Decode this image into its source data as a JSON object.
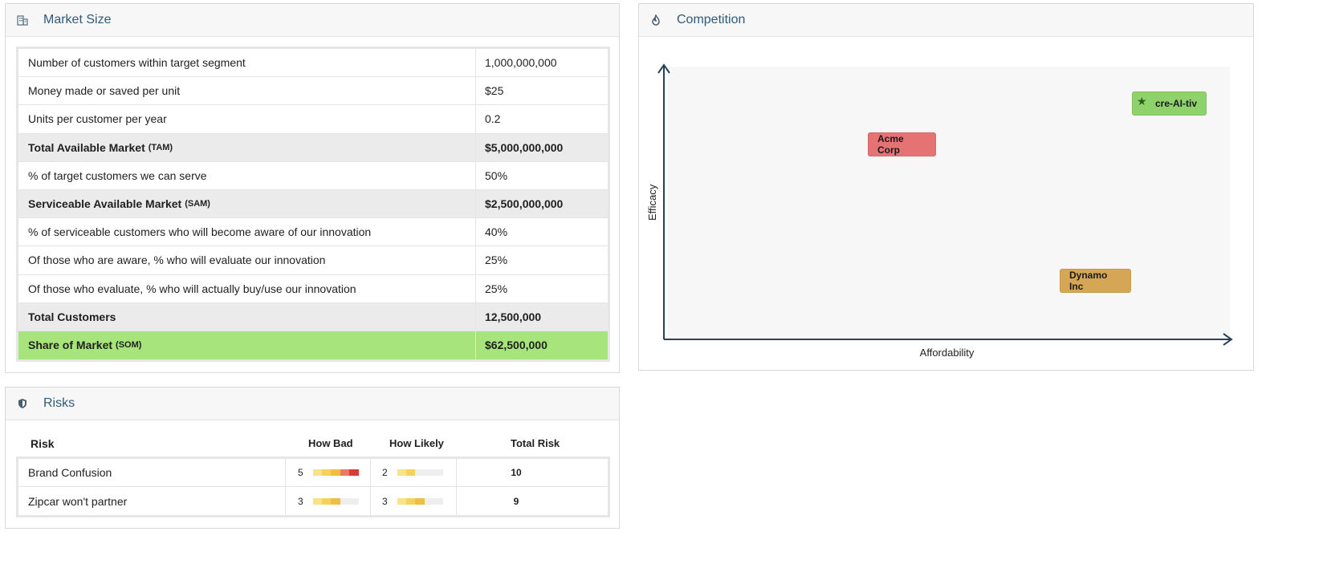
{
  "market": {
    "title": "Market Size",
    "icon": "building-icon",
    "rows": [
      {
        "label": "Number of customers within target segment",
        "abbr": "",
        "value": "1,000,000,000",
        "kind": "normal"
      },
      {
        "label": "Money made or saved per unit",
        "abbr": "",
        "value": "$25",
        "kind": "normal"
      },
      {
        "label": "Units per customer per year",
        "abbr": "",
        "value": "0.2",
        "kind": "normal"
      },
      {
        "label": "Total Available Market",
        "abbr": "(TAM)",
        "value": "$5,000,000,000",
        "kind": "total"
      },
      {
        "label": "% of target customers we can serve",
        "abbr": "",
        "value": "50%",
        "kind": "normal"
      },
      {
        "label": "Serviceable Available Market",
        "abbr": "(SAM)",
        "value": "$2,500,000,000",
        "kind": "total"
      },
      {
        "label": "% of serviceable customers who will become aware of our innovation",
        "abbr": "",
        "value": "40%",
        "kind": "normal"
      },
      {
        "label": "Of those who are aware, % who will evaluate our innovation",
        "abbr": "",
        "value": "25%",
        "kind": "normal"
      },
      {
        "label": "Of those who evaluate, % who will actually buy/use our innovation",
        "abbr": "",
        "value": "25%",
        "kind": "normal"
      },
      {
        "label": "Total Customers",
        "abbr": "",
        "value": "12,500,000",
        "kind": "total"
      },
      {
        "label": "Share of Market",
        "abbr": "(SOM)",
        "value": "$62,500,000",
        "kind": "som"
      }
    ]
  },
  "competition": {
    "title": "Competition",
    "icon": "flame-icon",
    "x_axis_label": "Affordability",
    "y_axis_label": "Efficacy",
    "competitors": [
      {
        "name": "Acme Corp",
        "color": "#e57373"
      },
      {
        "name": "Dynamo Inc",
        "color": "#d5a655"
      },
      {
        "name": "cre-AI-tiv",
        "color": "#8fd16a",
        "is_us": true
      }
    ]
  },
  "risks": {
    "title": "Risks",
    "icon": "shield-icon",
    "headers": {
      "risk": "Risk",
      "how_bad": "How Bad",
      "how_likely": "How Likely",
      "total": "Total Risk"
    },
    "meter_max": 5,
    "meter_colors": [
      "#f7e38a",
      "#f3d35a",
      "#ecc040",
      "#e97a6a",
      "#d93b3b"
    ],
    "rows": [
      {
        "name": "Brand Confusion",
        "how_bad": 5,
        "how_likely": 2,
        "total": "10"
      },
      {
        "name": "Zipcar won't partner",
        "how_bad": 3,
        "how_likely": 3,
        "total": "9"
      }
    ]
  }
}
